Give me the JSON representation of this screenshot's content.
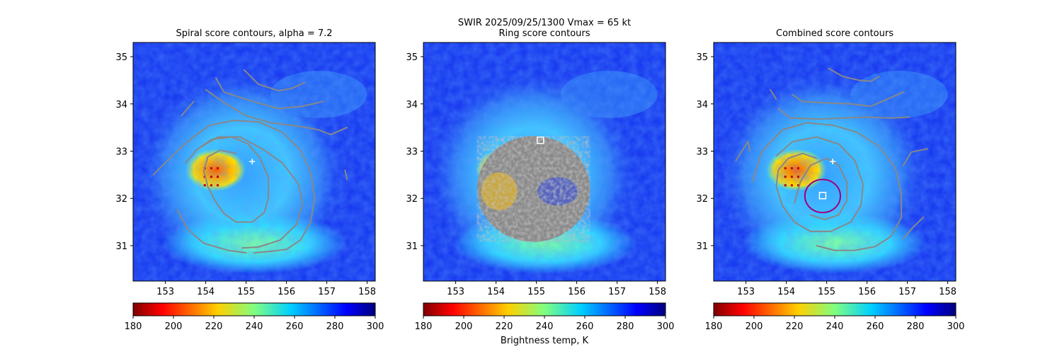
{
  "suptitle": "SWIR  2025/09/25/1300    Vmax = 65 kt",
  "colorbar_label": "Brightness temp, K",
  "colors": {
    "contour": "#888888",
    "ring": "#a0007e",
    "marker": "#ffffff",
    "cold_background": "#1a3cf0"
  },
  "chart_data": [
    {
      "type": "heatmap",
      "title": "Spiral score contours, alpha =  7.2",
      "xlim": [
        152.2,
        158.2
      ],
      "ylim": [
        30.25,
        35.3
      ],
      "xticks": [
        "153",
        "154",
        "155",
        "156",
        "157",
        "158"
      ],
      "yticks": [
        "31",
        "32",
        "33",
        "34",
        "35"
      ],
      "colorscale": "jet_r",
      "clim": [
        180,
        300
      ],
      "colorbar_ticks": [
        "180",
        "200",
        "220",
        "240",
        "260",
        "280",
        "300"
      ],
      "cross_marker": [
        155.15,
        32.78
      ],
      "contours": [
        [
          [
            153.75,
            33.02
          ],
          [
            154.15,
            33.25
          ],
          [
            154.65,
            33.3
          ],
          [
            155.05,
            33.15
          ],
          [
            155.35,
            32.85
          ],
          [
            155.55,
            32.45
          ],
          [
            155.55,
            32.0
          ],
          [
            155.45,
            31.7
          ],
          [
            155.15,
            31.5
          ],
          [
            154.75,
            31.5
          ],
          [
            154.45,
            31.68
          ],
          [
            154.25,
            31.92
          ],
          [
            154.05,
            32.25
          ],
          [
            153.95,
            32.58
          ],
          [
            154.05,
            32.88
          ],
          [
            154.35,
            33.02
          ],
          [
            154.75,
            32.95
          ]
        ],
        [
          [
            153.5,
            32.75
          ],
          [
            153.8,
            33.05
          ],
          [
            154.3,
            33.3
          ],
          [
            154.85,
            33.3
          ],
          [
            155.4,
            33.05
          ],
          [
            155.9,
            32.75
          ],
          [
            156.3,
            32.3
          ],
          [
            156.4,
            31.9
          ],
          [
            156.25,
            31.45
          ],
          [
            155.85,
            31.12
          ],
          [
            155.3,
            30.97
          ],
          [
            154.9,
            30.95
          ]
        ],
        [
          [
            152.7,
            32.5
          ],
          [
            153.05,
            32.8
          ],
          [
            153.55,
            33.2
          ],
          [
            154.1,
            33.55
          ],
          [
            154.7,
            33.65
          ],
          [
            155.3,
            33.62
          ],
          [
            155.9,
            33.4
          ],
          [
            156.35,
            33.02
          ],
          [
            156.6,
            32.55
          ],
          [
            156.7,
            32.0
          ],
          [
            156.6,
            31.5
          ],
          [
            156.35,
            31.12
          ],
          [
            156.0,
            30.92
          ],
          [
            155.6,
            30.88
          ],
          [
            155.2,
            30.85
          ]
        ],
        [
          [
            153.3,
            31.75
          ],
          [
            153.55,
            31.35
          ],
          [
            153.95,
            31.05
          ],
          [
            154.55,
            30.9
          ],
          [
            155.0,
            30.85
          ]
        ],
        [
          [
            154.25,
            34.55
          ],
          [
            154.45,
            34.25
          ],
          [
            154.8,
            34.15
          ],
          [
            155.3,
            34.02
          ],
          [
            155.8,
            33.9
          ],
          [
            156.4,
            33.95
          ],
          [
            156.9,
            34.05
          ]
        ],
        [
          [
            154.0,
            34.3
          ],
          [
            154.5,
            34.0
          ],
          [
            155.0,
            33.75
          ],
          [
            155.6,
            33.6
          ],
          [
            156.1,
            33.55
          ],
          [
            156.5,
            33.5
          ],
          [
            156.8,
            33.45
          ],
          [
            157.1,
            33.35
          ],
          [
            157.5,
            33.5
          ]
        ],
        [
          [
            154.95,
            34.72
          ],
          [
            155.3,
            34.42
          ],
          [
            155.8,
            34.28
          ],
          [
            156.1,
            34.32
          ],
          [
            156.45,
            34.45
          ]
        ],
        [
          [
            153.4,
            33.75
          ],
          [
            153.7,
            34.05
          ]
        ],
        [
          [
            157.45,
            32.6
          ],
          [
            157.5,
            32.4
          ]
        ]
      ]
    },
    {
      "type": "heatmap",
      "title": "Ring score contours",
      "xlim": [
        152.2,
        158.2
      ],
      "ylim": [
        30.25,
        35.3
      ],
      "xticks": [
        "153",
        "154",
        "155",
        "156",
        "157",
        "158"
      ],
      "yticks": [
        "31",
        "32",
        "33",
        "34",
        "35"
      ],
      "colorscale": "jet_r",
      "clim": [
        180,
        300
      ],
      "colorbar_ticks": [
        "180",
        "200",
        "220",
        "240",
        "260",
        "280",
        "300"
      ],
      "square_markers": [
        [
          155.1,
          33.23
        ]
      ],
      "ring_score_region": {
        "center": [
          154.93,
          32.2
        ],
        "radius_deg_lon": 1.4,
        "radius_deg_lat": 1.12
      }
    },
    {
      "type": "heatmap",
      "title": "Combined score contours",
      "xlim": [
        152.2,
        158.2
      ],
      "ylim": [
        30.25,
        35.3
      ],
      "xticks": [
        "153",
        "154",
        "155",
        "156",
        "157",
        "158"
      ],
      "yticks": [
        "31",
        "32",
        "33",
        "34",
        "35"
      ],
      "colorscale": "jet_r",
      "clim": [
        180,
        300
      ],
      "colorbar_ticks": [
        "180",
        "200",
        "220",
        "240",
        "260",
        "280",
        "300"
      ],
      "cross_marker": [
        155.15,
        32.78
      ],
      "square_markers": [
        [
          154.9,
          32.06
        ]
      ],
      "ring_circle": {
        "center": [
          154.9,
          32.05
        ],
        "radius_deg_lon": 0.44,
        "radius_deg_lat": 0.35
      },
      "contours": [
        [
          [
            154.2,
            31.9
          ],
          [
            154.35,
            32.35
          ],
          [
            154.6,
            32.7
          ],
          [
            155.0,
            32.85
          ],
          [
            155.3,
            32.7
          ],
          [
            155.5,
            32.35
          ],
          [
            155.5,
            31.95
          ],
          [
            155.3,
            31.65
          ],
          [
            154.95,
            31.55
          ],
          [
            154.6,
            31.65
          ]
        ],
        [
          [
            153.75,
            32.9
          ],
          [
            154.15,
            33.2
          ],
          [
            154.75,
            33.3
          ],
          [
            155.3,
            33.15
          ],
          [
            155.7,
            32.8
          ],
          [
            155.9,
            32.3
          ],
          [
            155.85,
            31.85
          ],
          [
            155.6,
            31.5
          ],
          [
            155.1,
            31.3
          ],
          [
            154.6,
            31.3
          ],
          [
            154.2,
            31.5
          ],
          [
            153.9,
            31.85
          ],
          [
            153.75,
            32.25
          ],
          [
            153.8,
            32.6
          ],
          [
            154.05,
            32.85
          ],
          [
            154.4,
            32.95
          ],
          [
            154.75,
            32.85
          ]
        ],
        [
          [
            153.15,
            32.35
          ],
          [
            153.4,
            33.0
          ],
          [
            153.9,
            33.45
          ],
          [
            154.5,
            33.6
          ],
          [
            155.15,
            33.55
          ],
          [
            155.75,
            33.4
          ],
          [
            156.3,
            33.1
          ],
          [
            156.7,
            32.65
          ],
          [
            156.85,
            32.1
          ],
          [
            156.85,
            31.6
          ],
          [
            156.6,
            31.2
          ],
          [
            156.2,
            30.98
          ],
          [
            155.7,
            30.9
          ],
          [
            155.2,
            30.9
          ],
          [
            154.75,
            31.0
          ]
        ],
        [
          [
            152.75,
            32.8
          ],
          [
            153.05,
            33.2
          ],
          [
            153.1,
            33.0
          ]
        ],
        [
          [
            154.15,
            34.2
          ],
          [
            154.4,
            34.05
          ],
          [
            155.0,
            34.02
          ],
          [
            155.6,
            34.0
          ],
          [
            156.1,
            33.95
          ],
          [
            156.5,
            34.1
          ],
          [
            156.9,
            34.25
          ]
        ],
        [
          [
            153.8,
            33.9
          ],
          [
            154.1,
            33.7
          ],
          [
            154.8,
            33.68
          ],
          [
            155.4,
            33.7
          ],
          [
            156.0,
            33.72
          ],
          [
            156.6,
            33.7
          ],
          [
            157.05,
            33.72
          ]
        ],
        [
          [
            155.05,
            34.75
          ],
          [
            155.4,
            34.58
          ],
          [
            155.8,
            34.5
          ],
          [
            156.1,
            34.48
          ],
          [
            156.3,
            34.58
          ]
        ],
        [
          [
            153.6,
            34.3
          ],
          [
            153.75,
            34.1
          ]
        ],
        [
          [
            156.9,
            32.7
          ],
          [
            157.1,
            32.98
          ],
          [
            157.5,
            33.05
          ]
        ],
        [
          [
            156.9,
            31.15
          ],
          [
            157.15,
            31.4
          ],
          [
            157.4,
            31.6
          ]
        ]
      ]
    }
  ]
}
